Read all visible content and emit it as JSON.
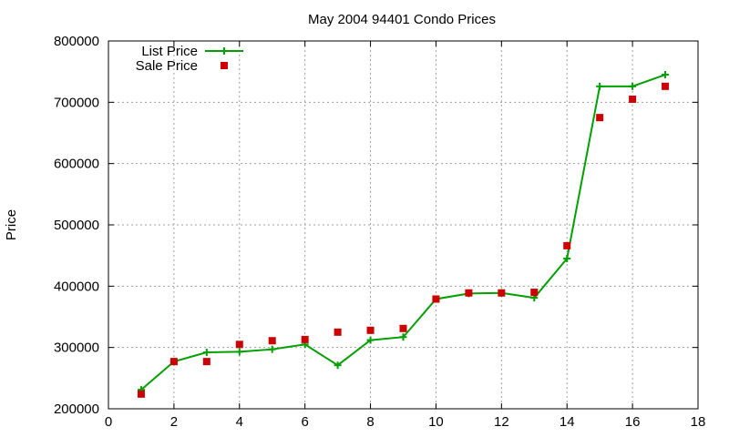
{
  "chart_data": {
    "type": "line",
    "title": "May 2004 94401 Condo Prices",
    "xlabel": "",
    "ylabel": "Price",
    "xlim": [
      0,
      18
    ],
    "ylim": [
      200000,
      800000
    ],
    "x_ticks": [
      0,
      2,
      4,
      6,
      8,
      10,
      12,
      14,
      16,
      18
    ],
    "y_ticks": [
      200000,
      300000,
      400000,
      500000,
      600000,
      700000,
      800000
    ],
    "grid": true,
    "legend_position": "top-left",
    "x": [
      1,
      2,
      3,
      4,
      5,
      6,
      7,
      8,
      9,
      10,
      11,
      12,
      13,
      14,
      15,
      16,
      17
    ],
    "series": [
      {
        "name": "List Price",
        "style": "linespoints",
        "marker": "plus",
        "color": "#00a000",
        "values": [
          231000,
          277000,
          292000,
          293000,
          297000,
          305000,
          271000,
          312000,
          317000,
          379000,
          388000,
          389000,
          381000,
          445000,
          726000,
          726000,
          745000
        ]
      },
      {
        "name": "Sale Price",
        "style": "points",
        "marker": "square",
        "color": "#cc0000",
        "values": [
          224000,
          277000,
          277000,
          305000,
          311000,
          313000,
          325000,
          328000,
          331000,
          379000,
          389000,
          389000,
          390000,
          466000,
          675000,
          705000,
          726000
        ]
      }
    ]
  }
}
